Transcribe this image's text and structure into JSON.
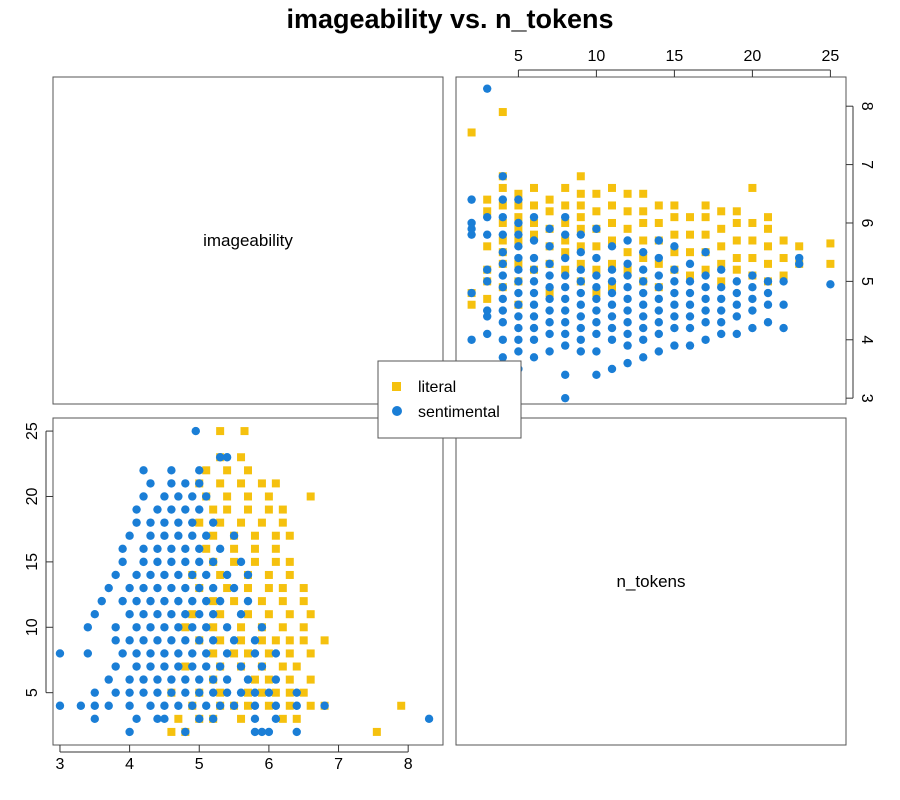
{
  "title": "imageability vs. n_tokens",
  "colors": {
    "literal": "#F5C10E",
    "sentimental": "#1A7ED6"
  },
  "chart_data": {
    "type": "scatter",
    "title": "imageability vs. n_tokens",
    "variables": [
      "imageability",
      "n_tokens"
    ],
    "axes": {
      "imageability": {
        "range": [
          2.9,
          8.5
        ],
        "ticks": [
          3,
          4,
          5,
          6,
          7,
          8
        ]
      },
      "n_tokens": {
        "range": [
          1,
          26
        ],
        "ticks": [
          5,
          10,
          15,
          20,
          25
        ]
      }
    },
    "legend": {
      "position": "center",
      "entries": [
        "literal",
        "sentimental"
      ]
    },
    "series": [
      {
        "name": "literal",
        "color": "#F5C10E",
        "marker": "square",
        "points": [
          [
            4.6,
            2
          ],
          [
            4.8,
            2
          ],
          [
            5.0,
            3
          ],
          [
            5.5,
            4
          ],
          [
            5.7,
            4
          ],
          [
            6.0,
            4
          ],
          [
            6.4,
            3
          ],
          [
            6.8,
            4
          ],
          [
            7.9,
            4
          ],
          [
            7.55,
            2
          ],
          [
            4.7,
            3
          ],
          [
            5.2,
            3
          ],
          [
            5.6,
            3
          ],
          [
            6.2,
            3
          ],
          [
            4.9,
            4
          ],
          [
            5.3,
            4
          ],
          [
            6.3,
            4
          ],
          [
            6.6,
            4
          ],
          [
            4.6,
            5
          ],
          [
            5.0,
            5
          ],
          [
            5.3,
            5
          ],
          [
            5.7,
            5
          ],
          [
            5.9,
            5
          ],
          [
            6.1,
            5
          ],
          [
            6.3,
            5
          ],
          [
            6.5,
            5
          ],
          [
            6.0,
            6
          ],
          [
            6.3,
            6
          ],
          [
            6.6,
            6
          ],
          [
            5.8,
            6
          ],
          [
            5.2,
            6
          ],
          [
            4.8,
            7
          ],
          [
            5.3,
            7
          ],
          [
            5.6,
            7
          ],
          [
            5.9,
            7
          ],
          [
            6.2,
            7
          ],
          [
            6.4,
            7
          ],
          [
            6.6,
            8
          ],
          [
            6.3,
            8
          ],
          [
            6.0,
            8
          ],
          [
            5.7,
            8
          ],
          [
            5.5,
            8
          ],
          [
            5.2,
            8
          ],
          [
            5.0,
            9
          ],
          [
            5.3,
            9
          ],
          [
            5.6,
            9
          ],
          [
            5.9,
            9
          ],
          [
            6.1,
            9
          ],
          [
            6.3,
            9
          ],
          [
            6.5,
            9
          ],
          [
            6.8,
            9
          ],
          [
            6.5,
            10
          ],
          [
            6.2,
            10
          ],
          [
            5.9,
            10
          ],
          [
            5.6,
            10
          ],
          [
            5.2,
            10
          ],
          [
            4.8,
            10
          ],
          [
            4.9,
            11
          ],
          [
            5.3,
            11
          ],
          [
            5.7,
            11
          ],
          [
            6.0,
            11
          ],
          [
            6.3,
            11
          ],
          [
            6.6,
            11
          ],
          [
            6.5,
            12
          ],
          [
            6.2,
            12
          ],
          [
            5.9,
            12
          ],
          [
            5.5,
            12
          ],
          [
            5.2,
            12
          ],
          [
            5.0,
            13
          ],
          [
            5.4,
            13
          ],
          [
            5.7,
            13
          ],
          [
            6.0,
            13
          ],
          [
            6.2,
            13
          ],
          [
            6.5,
            13
          ],
          [
            6.3,
            14
          ],
          [
            6.0,
            14
          ],
          [
            5.7,
            14
          ],
          [
            5.3,
            14
          ],
          [
            4.9,
            14
          ],
          [
            5.2,
            15
          ],
          [
            5.5,
            15
          ],
          [
            5.8,
            15
          ],
          [
            6.1,
            15
          ],
          [
            6.3,
            15
          ],
          [
            6.1,
            16
          ],
          [
            5.8,
            16
          ],
          [
            5.5,
            16
          ],
          [
            5.1,
            16
          ],
          [
            5.2,
            17
          ],
          [
            5.5,
            17
          ],
          [
            5.8,
            17
          ],
          [
            6.1,
            17
          ],
          [
            6.3,
            17
          ],
          [
            6.2,
            18
          ],
          [
            5.9,
            18
          ],
          [
            5.6,
            18
          ],
          [
            5.3,
            18
          ],
          [
            5.0,
            18
          ],
          [
            5.2,
            19
          ],
          [
            5.4,
            19
          ],
          [
            5.7,
            19
          ],
          [
            6.0,
            19
          ],
          [
            6.2,
            19
          ],
          [
            6.6,
            20
          ],
          [
            6.0,
            20
          ],
          [
            5.7,
            20
          ],
          [
            5.4,
            20
          ],
          [
            5.1,
            20
          ],
          [
            5.0,
            21
          ],
          [
            5.3,
            21
          ],
          [
            5.6,
            21
          ],
          [
            5.9,
            21
          ],
          [
            6.1,
            21
          ],
          [
            5.7,
            22
          ],
          [
            5.4,
            22
          ],
          [
            5.1,
            22
          ],
          [
            5.6,
            23
          ],
          [
            5.3,
            23
          ],
          [
            5.3,
            25
          ],
          [
            5.65,
            25
          ]
        ]
      },
      {
        "name": "sentimental",
        "color": "#1A7ED6",
        "marker": "circle",
        "points": [
          [
            4.0,
            2
          ],
          [
            4.8,
            2
          ],
          [
            5.8,
            2
          ],
          [
            5.9,
            2
          ],
          [
            6.0,
            2
          ],
          [
            6.4,
            2
          ],
          [
            3.5,
            3
          ],
          [
            4.1,
            3
          ],
          [
            4.4,
            3
          ],
          [
            4.5,
            3
          ],
          [
            5.0,
            3
          ],
          [
            5.2,
            3
          ],
          [
            5.8,
            3
          ],
          [
            6.1,
            3
          ],
          [
            8.3,
            3
          ],
          [
            3.0,
            4
          ],
          [
            3.3,
            4
          ],
          [
            3.5,
            4
          ],
          [
            3.7,
            4
          ],
          [
            4.0,
            4
          ],
          [
            4.3,
            4
          ],
          [
            4.5,
            4
          ],
          [
            4.7,
            4
          ],
          [
            4.9,
            4
          ],
          [
            5.1,
            4
          ],
          [
            5.3,
            4
          ],
          [
            5.5,
            4
          ],
          [
            5.8,
            4
          ],
          [
            6.1,
            4
          ],
          [
            6.4,
            4
          ],
          [
            6.8,
            4
          ],
          [
            3.5,
            5
          ],
          [
            3.8,
            5
          ],
          [
            4.0,
            5
          ],
          [
            4.2,
            5
          ],
          [
            4.4,
            5
          ],
          [
            4.6,
            5
          ],
          [
            4.8,
            5
          ],
          [
            5.0,
            5
          ],
          [
            5.2,
            5
          ],
          [
            5.4,
            5
          ],
          [
            5.6,
            5
          ],
          [
            5.8,
            5
          ],
          [
            6.0,
            5
          ],
          [
            6.4,
            5
          ],
          [
            3.7,
            6
          ],
          [
            4.0,
            6
          ],
          [
            4.2,
            6
          ],
          [
            4.4,
            6
          ],
          [
            4.6,
            6
          ],
          [
            4.8,
            6
          ],
          [
            5.0,
            6
          ],
          [
            5.2,
            6
          ],
          [
            5.4,
            6
          ],
          [
            5.7,
            6
          ],
          [
            6.1,
            6
          ],
          [
            3.8,
            7
          ],
          [
            4.1,
            7
          ],
          [
            4.3,
            7
          ],
          [
            4.5,
            7
          ],
          [
            4.7,
            7
          ],
          [
            4.9,
            7
          ],
          [
            5.1,
            7
          ],
          [
            5.3,
            7
          ],
          [
            5.6,
            7
          ],
          [
            5.9,
            7
          ],
          [
            3.4,
            8
          ],
          [
            3.0,
            8
          ],
          [
            3.9,
            8
          ],
          [
            4.1,
            8
          ],
          [
            4.3,
            8
          ],
          [
            4.5,
            8
          ],
          [
            4.7,
            8
          ],
          [
            4.9,
            8
          ],
          [
            5.1,
            8
          ],
          [
            5.4,
            8
          ],
          [
            5.8,
            8
          ],
          [
            6.1,
            8
          ],
          [
            3.8,
            9
          ],
          [
            4.0,
            9
          ],
          [
            4.2,
            9
          ],
          [
            4.4,
            9
          ],
          [
            4.6,
            9
          ],
          [
            4.8,
            9
          ],
          [
            5.0,
            9
          ],
          [
            5.2,
            9
          ],
          [
            5.5,
            9
          ],
          [
            5.8,
            9
          ],
          [
            3.4,
            10
          ],
          [
            3.8,
            10
          ],
          [
            4.1,
            10
          ],
          [
            4.3,
            10
          ],
          [
            4.5,
            10
          ],
          [
            4.7,
            10
          ],
          [
            4.9,
            10
          ],
          [
            5.1,
            10
          ],
          [
            5.4,
            10
          ],
          [
            5.9,
            10
          ],
          [
            3.5,
            11
          ],
          [
            4.0,
            11
          ],
          [
            4.2,
            11
          ],
          [
            4.4,
            11
          ],
          [
            4.6,
            11
          ],
          [
            4.8,
            11
          ],
          [
            5.0,
            11
          ],
          [
            5.2,
            11
          ],
          [
            5.6,
            11
          ],
          [
            3.6,
            12
          ],
          [
            3.9,
            12
          ],
          [
            4.1,
            12
          ],
          [
            4.3,
            12
          ],
          [
            4.5,
            12
          ],
          [
            4.7,
            12
          ],
          [
            4.9,
            12
          ],
          [
            5.1,
            12
          ],
          [
            5.3,
            12
          ],
          [
            5.7,
            12
          ],
          [
            3.7,
            13
          ],
          [
            4.0,
            13
          ],
          [
            4.2,
            13
          ],
          [
            4.4,
            13
          ],
          [
            4.6,
            13
          ],
          [
            4.8,
            13
          ],
          [
            5.0,
            13
          ],
          [
            5.2,
            13
          ],
          [
            5.5,
            13
          ],
          [
            3.8,
            14
          ],
          [
            4.1,
            14
          ],
          [
            4.3,
            14
          ],
          [
            4.5,
            14
          ],
          [
            4.7,
            14
          ],
          [
            4.9,
            14
          ],
          [
            5.1,
            14
          ],
          [
            5.4,
            14
          ],
          [
            5.7,
            14
          ],
          [
            3.9,
            15
          ],
          [
            4.2,
            15
          ],
          [
            4.4,
            15
          ],
          [
            4.6,
            15
          ],
          [
            4.8,
            15
          ],
          [
            5.0,
            15
          ],
          [
            5.2,
            15
          ],
          [
            5.6,
            15
          ],
          [
            3.9,
            16
          ],
          [
            4.2,
            16
          ],
          [
            4.4,
            16
          ],
          [
            4.6,
            16
          ],
          [
            4.8,
            16
          ],
          [
            5.0,
            16
          ],
          [
            5.3,
            16
          ],
          [
            4.0,
            17
          ],
          [
            4.3,
            17
          ],
          [
            4.5,
            17
          ],
          [
            4.7,
            17
          ],
          [
            4.9,
            17
          ],
          [
            5.1,
            17
          ],
          [
            5.5,
            17
          ],
          [
            4.1,
            18
          ],
          [
            4.3,
            18
          ],
          [
            4.5,
            18
          ],
          [
            4.7,
            18
          ],
          [
            4.9,
            18
          ],
          [
            5.2,
            18
          ],
          [
            4.1,
            19
          ],
          [
            4.4,
            19
          ],
          [
            4.6,
            19
          ],
          [
            4.8,
            19
          ],
          [
            5.0,
            19
          ],
          [
            4.2,
            20
          ],
          [
            4.5,
            20
          ],
          [
            4.7,
            20
          ],
          [
            4.9,
            20
          ],
          [
            5.1,
            20
          ],
          [
            4.3,
            21
          ],
          [
            4.6,
            21
          ],
          [
            4.8,
            21
          ],
          [
            5.0,
            21
          ],
          [
            4.2,
            22
          ],
          [
            4.6,
            22
          ],
          [
            5.0,
            22
          ],
          [
            5.3,
            23
          ],
          [
            5.4,
            23
          ],
          [
            4.95,
            25
          ]
        ]
      }
    ]
  }
}
